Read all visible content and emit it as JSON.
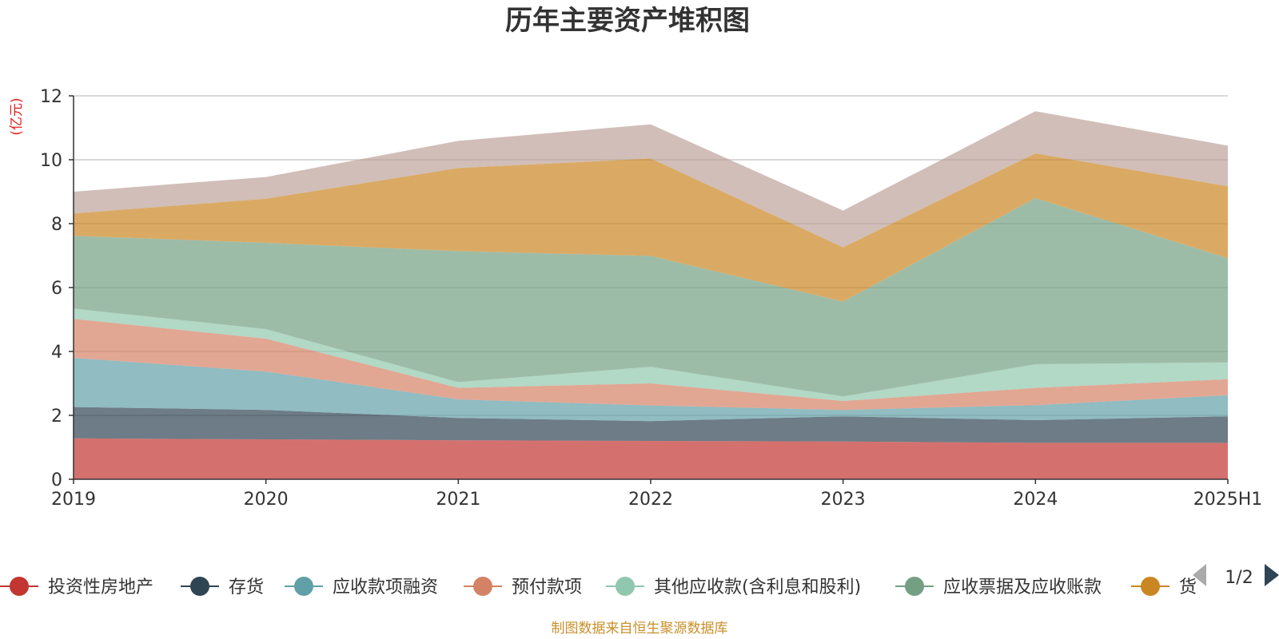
{
  "chart_data": {
    "type": "area",
    "title": "历年主要资产堆积图",
    "ylabel": "(亿元)",
    "x": [
      "2019",
      "2020",
      "2021",
      "2022",
      "2023",
      "2024",
      "2025H1"
    ],
    "ylim": [
      0,
      12
    ],
    "yticks": [
      0,
      2,
      4,
      6,
      8,
      10,
      12
    ],
    "stacked": true,
    "grid": true,
    "legend_position": "bottom",
    "series": [
      {
        "name": "投资性房地产",
        "color": "#c23531",
        "values": [
          1.28,
          1.25,
          1.22,
          1.2,
          1.18,
          1.14,
          1.14
        ]
      },
      {
        "name": "存货",
        "color": "#2f4554",
        "values": [
          0.98,
          0.92,
          0.7,
          0.62,
          0.79,
          0.71,
          0.83
        ]
      },
      {
        "name": "应收款项融资",
        "color": "#61a0a8",
        "values": [
          1.54,
          1.2,
          0.58,
          0.49,
          0.2,
          0.47,
          0.66
        ]
      },
      {
        "name": "预付款项",
        "color": "#d48265",
        "values": [
          1.22,
          1.03,
          0.36,
          0.69,
          0.28,
          0.54,
          0.5
        ]
      },
      {
        "name": "其他应收款(含利息和股利)",
        "color": "#91c7ae",
        "values": [
          0.32,
          0.3,
          0.18,
          0.52,
          0.14,
          0.74,
          0.53
        ]
      },
      {
        "name": "应收票据及应收账款",
        "color": "#749f83",
        "values": [
          2.28,
          2.7,
          4.1,
          3.47,
          2.97,
          5.2,
          3.26
        ]
      },
      {
        "name": "货币资金",
        "color": "#ca8622",
        "values": [
          0.7,
          1.38,
          2.6,
          3.05,
          1.7,
          1.4,
          2.25
        ]
      },
      {
        "name": "",
        "color": "#bda29a",
        "values": [
          0.68,
          0.68,
          0.85,
          1.07,
          1.15,
          1.32,
          1.27
        ]
      }
    ],
    "legend_visible": [
      "投资性房地产",
      "存货",
      "应收款项融资",
      "预付款项",
      "其他应收款(含利息和股利)",
      "应收票据及应收账款",
      "货"
    ]
  },
  "legend_pager": {
    "label": "1/2",
    "prev_icon": "triangle-left-icon",
    "next_icon": "triangle-right-icon"
  },
  "source_note": "制图数据来自恒生聚源数据库"
}
